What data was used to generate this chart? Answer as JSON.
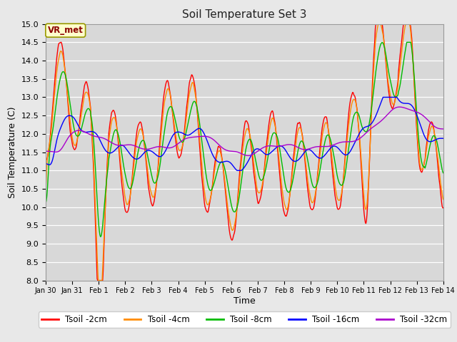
{
  "title": "Soil Temperature Set 3",
  "xlabel": "Time",
  "ylabel": "Soil Temperature (C)",
  "ylim": [
    8.0,
    15.0
  ],
  "yticks": [
    8.0,
    8.5,
    9.0,
    9.5,
    10.0,
    10.5,
    11.0,
    11.5,
    12.0,
    12.5,
    13.0,
    13.5,
    14.0,
    14.5,
    15.0
  ],
  "colors": {
    "Tsoil -2cm": "#ff0000",
    "Tsoil -4cm": "#ff8c00",
    "Tsoil -8cm": "#00bb00",
    "Tsoil -16cm": "#0000ff",
    "Tsoil -32cm": "#aa00cc"
  },
  "xtick_labels": [
    "Jan 30",
    "Jan 31",
    "Feb 1",
    "Feb 2",
    "Feb 3",
    "Feb 4",
    "Feb 5",
    "Feb 6",
    "Feb 7",
    "Feb 8",
    "Feb 9",
    "Feb 10",
    "Feb 11",
    "Feb 12",
    "Feb 13",
    "Feb 14"
  ],
  "annotation_text": "VR_met",
  "background_color": "#e8e8e8",
  "plot_bg_color": "#d8d8d8",
  "title_fontsize": 11,
  "axis_fontsize": 9,
  "legend_fontsize": 8.5,
  "linewidth": 1.0
}
